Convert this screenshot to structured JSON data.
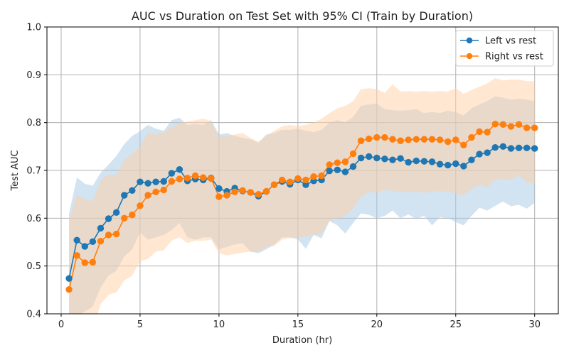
{
  "chart_data": {
    "type": "line",
    "title": "AUC vs Duration on Test Set with 95% CI (Train by Duration)",
    "xlabel": "Duration (hr)",
    "ylabel": "Test AUC",
    "xlim": [
      -0.9,
      31.5
    ],
    "ylim": [
      0.4,
      1.0
    ],
    "xticks": [
      0,
      5,
      10,
      15,
      20,
      25,
      30
    ],
    "yticks": [
      0.4,
      0.5,
      0.6,
      0.7,
      0.8,
      0.9,
      1.0
    ],
    "xtick_labels": [
      "0",
      "5",
      "10",
      "15",
      "20",
      "25",
      "30"
    ],
    "ytick_labels": [
      "0.4",
      "0.5",
      "0.6",
      "0.7",
      "0.8",
      "0.9",
      "1.0"
    ],
    "grid": true,
    "legend_position": "top-right",
    "x": [
      0.5,
      1,
      1.5,
      2,
      2.5,
      3,
      3.5,
      4,
      4.5,
      5,
      5.5,
      6,
      6.5,
      7,
      7.5,
      8,
      8.5,
      9,
      9.5,
      10,
      10.5,
      11,
      11.5,
      12,
      12.5,
      13,
      13.5,
      14,
      14.5,
      15,
      15.5,
      16,
      16.5,
      17,
      17.5,
      18,
      18.5,
      19,
      19.5,
      20,
      20.5,
      21,
      21.5,
      22,
      22.5,
      23,
      23.5,
      24,
      24.5,
      25,
      25.5,
      26,
      26.5,
      27,
      27.5,
      28,
      28.5,
      29,
      29.5,
      30
    ],
    "series": [
      {
        "name": "Left vs rest",
        "color": "#1f77b4",
        "band_color": "#a6c8e5",
        "values": [
          0.474,
          0.554,
          0.541,
          0.551,
          0.579,
          0.599,
          0.612,
          0.648,
          0.658,
          0.676,
          0.673,
          0.676,
          0.677,
          0.694,
          0.702,
          0.678,
          0.682,
          0.68,
          0.684,
          0.662,
          0.656,
          0.663,
          0.657,
          0.654,
          0.646,
          0.656,
          0.67,
          0.677,
          0.671,
          0.68,
          0.67,
          0.678,
          0.68,
          0.699,
          0.701,
          0.697,
          0.708,
          0.726,
          0.729,
          0.726,
          0.724,
          0.722,
          0.725,
          0.717,
          0.72,
          0.719,
          0.718,
          0.713,
          0.711,
          0.714,
          0.709,
          0.722,
          0.734,
          0.737,
          0.748,
          0.75,
          0.746,
          0.747,
          0.747,
          0.746
        ],
        "ci_upper": [
          0.61,
          0.685,
          0.672,
          0.668,
          0.695,
          0.712,
          0.73,
          0.755,
          0.772,
          0.782,
          0.795,
          0.787,
          0.783,
          0.805,
          0.81,
          0.795,
          0.797,
          0.795,
          0.805,
          0.775,
          0.778,
          0.772,
          0.768,
          0.765,
          0.758,
          0.775,
          0.778,
          0.785,
          0.785,
          0.787,
          0.783,
          0.78,
          0.785,
          0.8,
          0.805,
          0.8,
          0.812,
          0.835,
          0.838,
          0.84,
          0.828,
          0.826,
          0.825,
          0.826,
          0.828,
          0.82,
          0.822,
          0.82,
          0.825,
          0.822,
          0.815,
          0.83,
          0.838,
          0.845,
          0.855,
          0.852,
          0.848,
          0.85,
          0.848,
          0.845
        ],
        "ci_lower": [
          0.38,
          0.395,
          0.405,
          0.415,
          0.455,
          0.48,
          0.49,
          0.52,
          0.535,
          0.57,
          0.555,
          0.56,
          0.565,
          0.575,
          0.59,
          0.56,
          0.555,
          0.56,
          0.56,
          0.535,
          0.54,
          0.545,
          0.548,
          0.53,
          0.527,
          0.535,
          0.545,
          0.56,
          0.56,
          0.556,
          0.536,
          0.565,
          0.558,
          0.594,
          0.585,
          0.568,
          0.59,
          0.61,
          0.607,
          0.6,
          0.605,
          0.616,
          0.6,
          0.608,
          0.598,
          0.605,
          0.585,
          0.602,
          0.6,
          0.592,
          0.585,
          0.605,
          0.622,
          0.616,
          0.626,
          0.635,
          0.625,
          0.628,
          0.62,
          0.632
        ]
      },
      {
        "name": "Right vs rest",
        "color": "#ff7f0e",
        "band_color": "#ffcfa3",
        "values": [
          0.451,
          0.522,
          0.507,
          0.508,
          0.552,
          0.565,
          0.567,
          0.6,
          0.607,
          0.626,
          0.648,
          0.655,
          0.659,
          0.677,
          0.682,
          0.684,
          0.689,
          0.685,
          0.683,
          0.645,
          0.648,
          0.655,
          0.658,
          0.654,
          0.65,
          0.656,
          0.67,
          0.68,
          0.676,
          0.683,
          0.68,
          0.687,
          0.689,
          0.712,
          0.716,
          0.718,
          0.735,
          0.762,
          0.766,
          0.769,
          0.769,
          0.765,
          0.762,
          0.764,
          0.765,
          0.765,
          0.765,
          0.764,
          0.76,
          0.764,
          0.753,
          0.769,
          0.781,
          0.78,
          0.797,
          0.796,
          0.792,
          0.796,
          0.789,
          0.789
        ],
        "ci_upper": [
          0.595,
          0.65,
          0.64,
          0.635,
          0.68,
          0.692,
          0.69,
          0.722,
          0.735,
          0.75,
          0.78,
          0.775,
          0.78,
          0.79,
          0.8,
          0.802,
          0.805,
          0.808,
          0.803,
          0.77,
          0.772,
          0.775,
          0.778,
          0.768,
          0.76,
          0.772,
          0.783,
          0.792,
          0.795,
          0.793,
          0.795,
          0.8,
          0.808,
          0.82,
          0.83,
          0.835,
          0.845,
          0.87,
          0.872,
          0.87,
          0.862,
          0.88,
          0.865,
          0.866,
          0.865,
          0.866,
          0.865,
          0.866,
          0.865,
          0.872,
          0.86,
          0.868,
          0.875,
          0.882,
          0.893,
          0.888,
          0.89,
          0.89,
          0.887,
          0.886
        ],
        "ci_lower": [
          0.32,
          0.39,
          0.375,
          0.37,
          0.42,
          0.44,
          0.445,
          0.47,
          0.48,
          0.51,
          0.515,
          0.53,
          0.533,
          0.553,
          0.56,
          0.548,
          0.553,
          0.553,
          0.555,
          0.527,
          0.522,
          0.525,
          0.528,
          0.53,
          0.53,
          0.54,
          0.542,
          0.555,
          0.558,
          0.56,
          0.562,
          0.565,
          0.568,
          0.595,
          0.6,
          0.605,
          0.62,
          0.645,
          0.655,
          0.653,
          0.66,
          0.657,
          0.654,
          0.655,
          0.656,
          0.653,
          0.655,
          0.657,
          0.655,
          0.652,
          0.648,
          0.66,
          0.67,
          0.665,
          0.68,
          0.682,
          0.68,
          0.69,
          0.675,
          0.672
        ]
      }
    ]
  }
}
